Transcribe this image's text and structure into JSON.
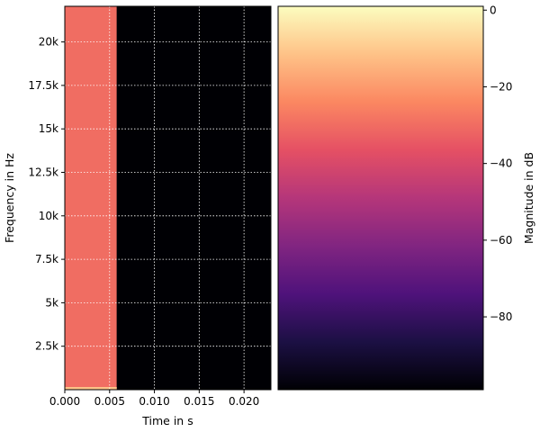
{
  "chart_data": [
    {
      "type": "heatmap",
      "title": "",
      "xlabel": "Time in s",
      "ylabel": "Frequency in Hz",
      "xlim": [
        0.0,
        0.023
      ],
      "ylim": [
        0,
        22050
      ],
      "x_ticks": [
        {
          "value": 0.0,
          "label": "0.000"
        },
        {
          "value": 0.005,
          "label": "0.005"
        },
        {
          "value": 0.01,
          "label": "0.010"
        },
        {
          "value": 0.015,
          "label": "0.015"
        },
        {
          "value": 0.02,
          "label": "0.020"
        }
      ],
      "y_ticks": [
        {
          "value": 2500,
          "label": "2.5k"
        },
        {
          "value": 5000,
          "label": "5k"
        },
        {
          "value": 7500,
          "label": "7.5k"
        },
        {
          "value": 10000,
          "label": "10k"
        },
        {
          "value": 12500,
          "label": "12.5k"
        },
        {
          "value": 15000,
          "label": "15k"
        },
        {
          "value": 17500,
          "label": "17.5k"
        },
        {
          "value": 20000,
          "label": "20k"
        }
      ],
      "grid": true,
      "colormap": "magma",
      "cells": [
        {
          "t_start": 0.0,
          "t_end": 0.0058,
          "f_start": 0,
          "f_end": 22050,
          "magnitude_db": -30
        },
        {
          "t_start": 0.0058,
          "t_end": 0.023,
          "f_start": 0,
          "f_end": 22050,
          "magnitude_db": -100
        }
      ]
    },
    {
      "type": "colorbar",
      "label": "Magnitude in dB",
      "range": [
        -99,
        1
      ],
      "colormap": "magma",
      "ticks": [
        {
          "value": 0,
          "label": "0"
        },
        {
          "value": -20,
          "label": "−20"
        },
        {
          "value": -40,
          "label": "−40"
        },
        {
          "value": -60,
          "label": "−60"
        },
        {
          "value": -80,
          "label": "−80"
        }
      ]
    }
  ],
  "colors": {
    "magma": [
      "#000004",
      "#1c1044",
      "#4f127b",
      "#812581",
      "#b5367a",
      "#e55064",
      "#fb8761",
      "#fec287",
      "#fcfdbf"
    ],
    "grid": "#ffffff"
  }
}
